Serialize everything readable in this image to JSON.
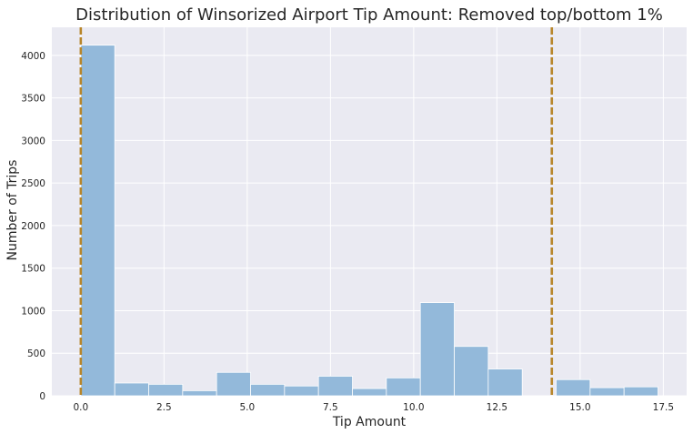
{
  "chart_data": {
    "type": "bar",
    "title": "Distribution of Winsorized Airport Tip Amount: Removed top/bottom 1%",
    "xlabel": "Tip Amount",
    "ylabel": "Number of Trips",
    "xlim": [
      -0.87,
      18.2
    ],
    "ylim": [
      0,
      4330
    ],
    "x_ticks": [
      0.0,
      2.5,
      5.0,
      7.5,
      10.0,
      12.5,
      15.0,
      17.5
    ],
    "x_tick_labels": [
      "0.0",
      "2.5",
      "5.0",
      "7.5",
      "10.0",
      "12.5",
      "15.0",
      "17.5"
    ],
    "y_ticks": [
      0,
      500,
      1000,
      1500,
      2000,
      2500,
      3000,
      3500,
      4000
    ],
    "y_tick_labels": [
      "0",
      "500",
      "1000",
      "1500",
      "2000",
      "2500",
      "3000",
      "3500",
      "4000"
    ],
    "bins": [
      {
        "x0": 0.0,
        "x1": 1.02,
        "count": 4120
      },
      {
        "x0": 1.02,
        "x1": 2.04,
        "count": 150
      },
      {
        "x0": 2.04,
        "x1": 3.06,
        "count": 135
      },
      {
        "x0": 3.06,
        "x1": 4.08,
        "count": 60
      },
      {
        "x0": 4.08,
        "x1": 5.1,
        "count": 275
      },
      {
        "x0": 5.1,
        "x1": 6.12,
        "count": 135
      },
      {
        "x0": 6.12,
        "x1": 7.14,
        "count": 115
      },
      {
        "x0": 7.14,
        "x1": 8.16,
        "count": 230
      },
      {
        "x0": 8.16,
        "x1": 9.18,
        "count": 85
      },
      {
        "x0": 9.18,
        "x1": 10.2,
        "count": 210
      },
      {
        "x0": 10.2,
        "x1": 11.22,
        "count": 1095
      },
      {
        "x0": 11.22,
        "x1": 12.24,
        "count": 580
      },
      {
        "x0": 12.24,
        "x1": 13.26,
        "count": 315
      },
      {
        "x0": 14.28,
        "x1": 15.3,
        "count": 190
      },
      {
        "x0": 15.3,
        "x1": 16.32,
        "count": 95
      },
      {
        "x0": 16.32,
        "x1": 17.34,
        "count": 105
      }
    ],
    "vlines": [
      0.0,
      14.15
    ],
    "grid": true,
    "colors": {
      "bar": "#93b9da",
      "vline": "#b8862b",
      "background": "#eaeaf2",
      "grid": "#ffffff"
    }
  }
}
